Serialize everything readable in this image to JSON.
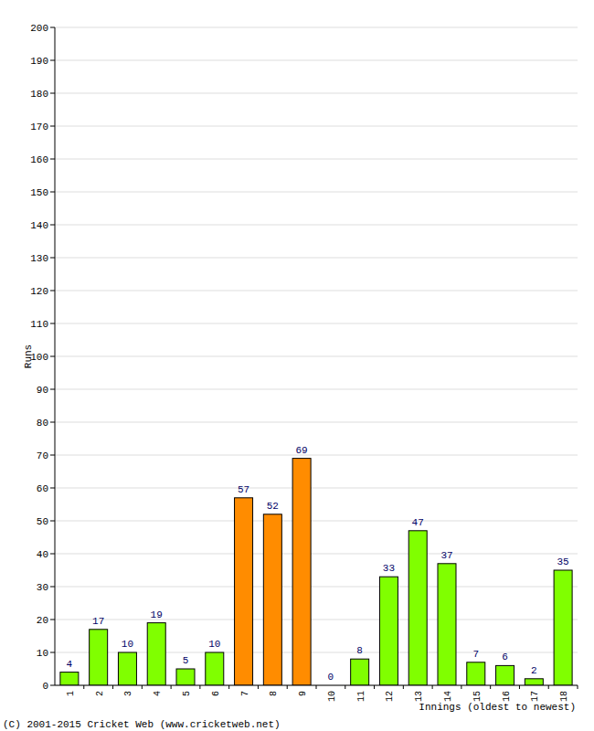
{
  "chart_data": {
    "type": "bar",
    "x_label": "Innings (oldest to newest)",
    "y_label": "Runs",
    "annotations": [
      "(C) 2001-2015 Cricket Web (www.cricketweb.net)"
    ],
    "categories": [
      "1",
      "2",
      "3",
      "4",
      "5",
      "6",
      "7",
      "8",
      "9",
      "10",
      "11",
      "12",
      "13",
      "14",
      "15",
      "16",
      "17",
      "18"
    ],
    "values": [
      4,
      17,
      10,
      19,
      5,
      10,
      57,
      52,
      69,
      0,
      8,
      33,
      47,
      37,
      7,
      6,
      2,
      35
    ],
    "colors": [
      "#80ff00",
      "#80ff00",
      "#80ff00",
      "#80ff00",
      "#80ff00",
      "#80ff00",
      "#ff8c00",
      "#ff8c00",
      "#ff8c00",
      "#80ff00",
      "#80ff00",
      "#80ff00",
      "#80ff00",
      "#80ff00",
      "#80ff00",
      "#80ff00",
      "#80ff00",
      "#80ff00"
    ],
    "ylim": [
      0,
      200
    ],
    "yticks": [
      0,
      10,
      20,
      30,
      40,
      50,
      60,
      70,
      80,
      90,
      100,
      110,
      120,
      130,
      140,
      150,
      160,
      170,
      180,
      190,
      200
    ],
    "grid": true,
    "data_labels": true
  }
}
